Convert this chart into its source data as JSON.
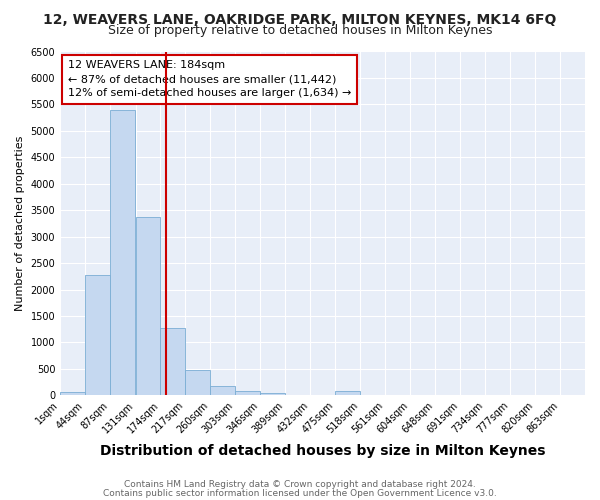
{
  "title": "12, WEAVERS LANE, OAKRIDGE PARK, MILTON KEYNES, MK14 6FQ",
  "subtitle": "Size of property relative to detached houses in Milton Keynes",
  "xlabel": "Distribution of detached houses by size in Milton Keynes",
  "ylabel": "Number of detached properties",
  "footer1": "Contains HM Land Registry data © Crown copyright and database right 2024.",
  "footer2": "Contains public sector information licensed under the Open Government Licence v3.0.",
  "annotation_line1": "12 WEAVERS LANE: 184sqm",
  "annotation_line2": "← 87% of detached houses are smaller (11,442)",
  "annotation_line3": "12% of semi-detached houses are larger (1,634) →",
  "bins": [
    1,
    44,
    87,
    131,
    174,
    217,
    260,
    303,
    346,
    389,
    432,
    475,
    518,
    561,
    604,
    648,
    691,
    734,
    777,
    820,
    863
  ],
  "bin_labels": [
    "1sqm",
    "44sqm",
    "87sqm",
    "131sqm",
    "174sqm",
    "217sqm",
    "260sqm",
    "303sqm",
    "346sqm",
    "389sqm",
    "432sqm",
    "475sqm",
    "518sqm",
    "561sqm",
    "604sqm",
    "648sqm",
    "691sqm",
    "734sqm",
    "777sqm",
    "820sqm",
    "863sqm"
  ],
  "counts": [
    60,
    2280,
    5400,
    3380,
    1280,
    470,
    170,
    80,
    50,
    0,
    0,
    75,
    0,
    0,
    0,
    0,
    0,
    0,
    0,
    0
  ],
  "bar_color": "#c5d8f0",
  "bar_edge_color": "#7aadd4",
  "vline_color": "#cc0000",
  "vline_x": 184,
  "xlim_left": 1,
  "xlim_right": 906,
  "ylim": [
    0,
    6500
  ],
  "yticks": [
    0,
    500,
    1000,
    1500,
    2000,
    2500,
    3000,
    3500,
    4000,
    4500,
    5000,
    5500,
    6000,
    6500
  ],
  "plot_bg_color": "#e8eef8",
  "fig_bg_color": "#ffffff",
  "grid_color": "#ffffff",
  "title_fontsize": 10,
  "subtitle_fontsize": 9,
  "xlabel_fontsize": 10,
  "ylabel_fontsize": 8,
  "tick_fontsize": 7,
  "annotation_fontsize": 8,
  "footer_fontsize": 6.5,
  "annotation_box_facecolor": "#ffffff",
  "annotation_box_edgecolor": "#cc0000"
}
